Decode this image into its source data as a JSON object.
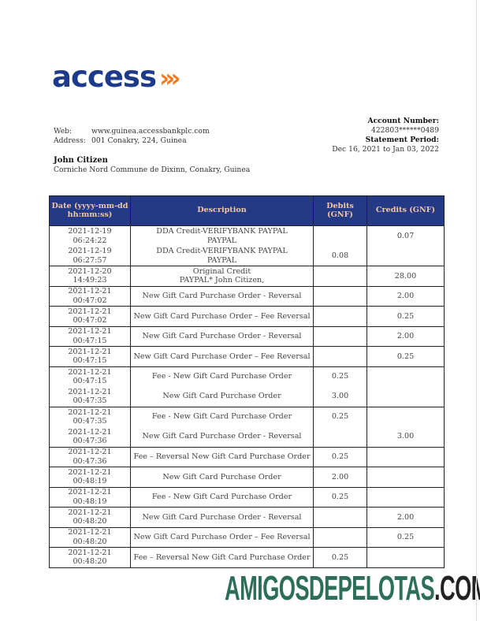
{
  "brand": {
    "logo_text": "access",
    "logo_arrows": "›››",
    "blue": "#1e3a8a",
    "orange": "#f47b20"
  },
  "bank_info": {
    "web_label": "Web:",
    "web": "www.guinea.accessbankplc.com",
    "address_label": "Address:",
    "address": "001 Conakry, 224, Guinea"
  },
  "account": {
    "number_label": "Account Number:",
    "number": "422803******0489",
    "period_label": "Statement Period:",
    "period": "Dec 16, 2021 to Jan 03, 2022"
  },
  "customer": {
    "name": "John Citizen",
    "address": "Corniche Nord Commune de Dixinn, Conakry, Guinea"
  },
  "table": {
    "header_bg": "#253a86",
    "columns": [
      "Date (yyyy-mm-dd hh:mm:ss)",
      "Description",
      "Debits (GNF)",
      "Credits (GNF)"
    ],
    "rows": [
      {
        "date": "2021-12-19",
        "time": "06:24:22",
        "desc": "DDA Credit-VERIFYBANK PAYPAL",
        "desc2": "PAYPAL",
        "debit": "",
        "credit": "0.07"
      },
      {
        "date": "2021-12-19",
        "time": "06:27:57",
        "desc": "DDA Credit-VERIFYBANK PAYPAL",
        "desc2": "PAYPAL",
        "debit": "0.08",
        "credit": ""
      },
      {
        "date": "2021-12-20",
        "time": "14:49:23",
        "desc": "Original Credit",
        "desc2": "PAYPAL* John Citizen,",
        "debit": "",
        "credit": "28.00"
      },
      {
        "date": "2021-12-21",
        "time": "00:47:02",
        "desc": "New Gift Card Purchase Order - Reversal",
        "desc2": "",
        "debit": "",
        "credit": "2.00"
      },
      {
        "date": "2021-12-21",
        "time": "00:47:02",
        "desc": "New Gift Card Purchase Order – Fee Reversal",
        "desc2": "",
        "debit": "",
        "credit": "0.25"
      },
      {
        "date": "2021-12-21",
        "time": "00:47:15",
        "desc": "New Gift Card Purchase Order - Reversal",
        "desc2": "",
        "debit": "",
        "credit": "2.00"
      },
      {
        "date": "2021-12-21",
        "time": "00:47:15",
        "desc": "New Gift Card Purchase Order – Fee Reversal",
        "desc2": "",
        "debit": "",
        "credit": "0.25"
      },
      {
        "date": "2021-12-21",
        "time": "00:47:15",
        "desc": "Fee - New Gift Card Purchase Order",
        "desc2": "",
        "debit": "0.25",
        "credit": ""
      },
      {
        "date": "2021-12-21",
        "time": "00:47:35",
        "desc": "New Gift Card Purchase Order",
        "desc2": "",
        "debit": "3.00",
        "credit": ""
      },
      {
        "date": "2021-12-21",
        "time": "00:47:35",
        "desc": "Fee - New Gift Card Purchase Order",
        "desc2": "",
        "debit": "0.25",
        "credit": ""
      },
      {
        "date": "2021-12-21",
        "time": "00:47:36",
        "desc": "New Gift Card Purchase Order - Reversal",
        "desc2": "",
        "debit": "",
        "credit": "3.00"
      },
      {
        "date": "2021-12-21",
        "time": "00:47:36",
        "desc": "Fee – Reversal New Gift Card Purchase Order",
        "desc2": "",
        "debit": "0.25",
        "credit": ""
      },
      {
        "date": "2021-12-21",
        "time": "00:48:19",
        "desc": "New Gift Card Purchase Order",
        "desc2": "",
        "debit": "2.00",
        "credit": ""
      },
      {
        "date": "2021-12-21",
        "time": "00:48:19",
        "desc": "Fee - New Gift Card Purchase Order",
        "desc2": "",
        "debit": "0.25",
        "credit": ""
      },
      {
        "date": "2021-12-21",
        "time": "00:48:20",
        "desc": "New Gift Card Purchase Order - Reversal",
        "desc2": "",
        "debit": "",
        "credit": "2.00"
      },
      {
        "date": "2021-12-21",
        "time": "00:48:20",
        "desc": "New Gift Card Purchase Order – Fee Reversal",
        "desc2": "",
        "debit": "",
        "credit": "0.25"
      },
      {
        "date": "2021-12-21",
        "time": "00:48:20",
        "desc": "Fee – Reversal New Gift Card Purchase Order",
        "desc2": "",
        "debit": "0.25",
        "credit": ""
      }
    ]
  },
  "watermark": {
    "main": "AMIGOSDEPELOTAS",
    "tld": ".COM",
    "color": "#2d6e57"
  }
}
